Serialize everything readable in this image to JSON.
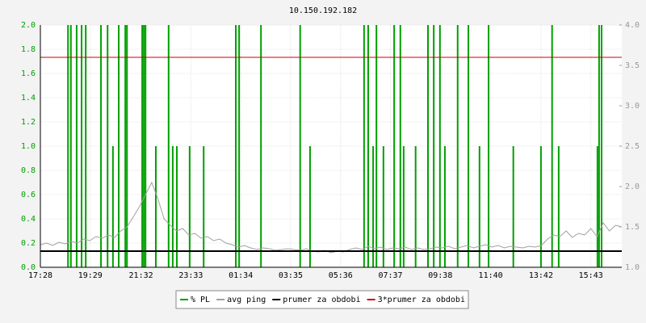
{
  "chart_data": {
    "type": "line",
    "title": "10.150.192.182",
    "xlim": [
      0,
      1410
    ],
    "xticks": [
      {
        "value": 0,
        "label": "17:28"
      },
      {
        "value": 121,
        "label": "19:29"
      },
      {
        "value": 244,
        "label": "21:32"
      },
      {
        "value": 365,
        "label": "23:33"
      },
      {
        "value": 486,
        "label": "01:34"
      },
      {
        "value": 607,
        "label": "03:35"
      },
      {
        "value": 728,
        "label": "05:36"
      },
      {
        "value": 849,
        "label": "07:37"
      },
      {
        "value": 970,
        "label": "09:38"
      },
      {
        "value": 1092,
        "label": "11:40"
      },
      {
        "value": 1214,
        "label": "13:42"
      },
      {
        "value": 1335,
        "label": "15:43"
      }
    ],
    "ylim": [
      0,
      2
    ],
    "yticks": [
      {
        "value": 0,
        "label": "0.0"
      },
      {
        "value": 0.2,
        "label": "0.2"
      },
      {
        "value": 0.4,
        "label": "0.4"
      },
      {
        "value": 0.6,
        "label": "0.6"
      },
      {
        "value": 0.8,
        "label": "0.8"
      },
      {
        "value": 1,
        "label": "1.0"
      },
      {
        "value": 1.2,
        "label": "1.2"
      },
      {
        "value": 1.4,
        "label": "1.4"
      },
      {
        "value": 1.6,
        "label": "1.6"
      },
      {
        "value": 1.8,
        "label": "1.8"
      },
      {
        "value": 2,
        "label": "2.0"
      }
    ],
    "y2lim": [
      1,
      4
    ],
    "y2ticks": [
      {
        "value": 1,
        "label": "1.0"
      },
      {
        "value": 1.5,
        "label": "1.5"
      },
      {
        "value": 2,
        "label": "2.0"
      },
      {
        "value": 2.5,
        "label": "2.5"
      },
      {
        "value": 3,
        "label": "3.0"
      },
      {
        "value": 3.5,
        "label": "3.5"
      },
      {
        "value": 4,
        "label": "4.0"
      }
    ],
    "grid": true,
    "series": [
      {
        "name": "% PL",
        "color": "#00a000",
        "type": "bar",
        "x": [
          67,
          74,
          88,
          100,
          110,
          147,
          163,
          176,
          190,
          206,
          210,
          247,
          251,
          255,
          280,
          311,
          321,
          331,
          362,
          396,
          474,
          482,
          535,
          630,
          654,
          785,
          795,
          807,
          815,
          832,
          858,
          873,
          881,
          910,
          940,
          954,
          969,
          981,
          1012,
          1038,
          1065,
          1087,
          1147,
          1214,
          1241,
          1257,
          1351,
          1355,
          1361
        ],
        "values": [
          2,
          2,
          2,
          2,
          2,
          2,
          2,
          1,
          2,
          2,
          2,
          2,
          2,
          2,
          1,
          2,
          1,
          1,
          1,
          1,
          2,
          2,
          2,
          2,
          1,
          2,
          2,
          1,
          2,
          1,
          2,
          2,
          1,
          1,
          2,
          2,
          2,
          1,
          2,
          2,
          1,
          2,
          1,
          1,
          2,
          1,
          1,
          2,
          2
        ]
      },
      {
        "name": "avg ping",
        "color": "#a0a0a0",
        "type": "line",
        "axis": "y2",
        "x": [
          0,
          15,
          30,
          45,
          60,
          75,
          90,
          105,
          120,
          135,
          150,
          165,
          180,
          195,
          210,
          225,
          240,
          255,
          270,
          285,
          300,
          315,
          330,
          345,
          360,
          375,
          390,
          405,
          420,
          435,
          450,
          465,
          480,
          495,
          510,
          525,
          540,
          555,
          570,
          585,
          600,
          615,
          630,
          645,
          660,
          675,
          690,
          705,
          720,
          735,
          750,
          765,
          780,
          795,
          810,
          825,
          840,
          855,
          870,
          885,
          900,
          915,
          930,
          945,
          960,
          975,
          990,
          1005,
          1020,
          1035,
          1050,
          1065,
          1080,
          1095,
          1110,
          1125,
          1140,
          1155,
          1170,
          1185,
          1200,
          1215,
          1230,
          1245,
          1260,
          1275,
          1290,
          1305,
          1320,
          1335,
          1350,
          1365,
          1380,
          1395,
          1410
        ],
        "values": [
          1.28,
          1.3,
          1.27,
          1.31,
          1.29,
          1.32,
          1.3,
          1.35,
          1.33,
          1.38,
          1.36,
          1.4,
          1.37,
          1.45,
          1.5,
          1.62,
          1.75,
          1.9,
          2.05,
          1.85,
          1.6,
          1.52,
          1.45,
          1.48,
          1.4,
          1.42,
          1.36,
          1.38,
          1.33,
          1.35,
          1.3,
          1.28,
          1.25,
          1.27,
          1.24,
          1.22,
          1.24,
          1.23,
          1.21,
          1.22,
          1.23,
          1.22,
          1.21,
          1.23,
          1.2,
          1.19,
          1.21,
          1.18,
          1.2,
          1.19,
          1.22,
          1.24,
          1.22,
          1.26,
          1.23,
          1.25,
          1.22,
          1.24,
          1.23,
          1.25,
          1.22,
          1.24,
          1.22,
          1.23,
          1.25,
          1.24,
          1.26,
          1.23,
          1.25,
          1.27,
          1.24,
          1.26,
          1.28,
          1.25,
          1.27,
          1.24,
          1.26,
          1.25,
          1.24,
          1.26,
          1.25,
          1.27,
          1.35,
          1.4,
          1.38,
          1.45,
          1.37,
          1.42,
          1.4,
          1.48,
          1.38,
          1.55,
          1.45,
          1.52,
          1.5
        ]
      },
      {
        "name": "prumer za obdobi",
        "color": "#000000",
        "type": "hline",
        "axis": "y2",
        "value": 1.2
      },
      {
        "name": "3*prumer za obdobi",
        "color": "#cc0000",
        "type": "hline",
        "axis": "y2",
        "value": 3.6
      }
    ]
  }
}
